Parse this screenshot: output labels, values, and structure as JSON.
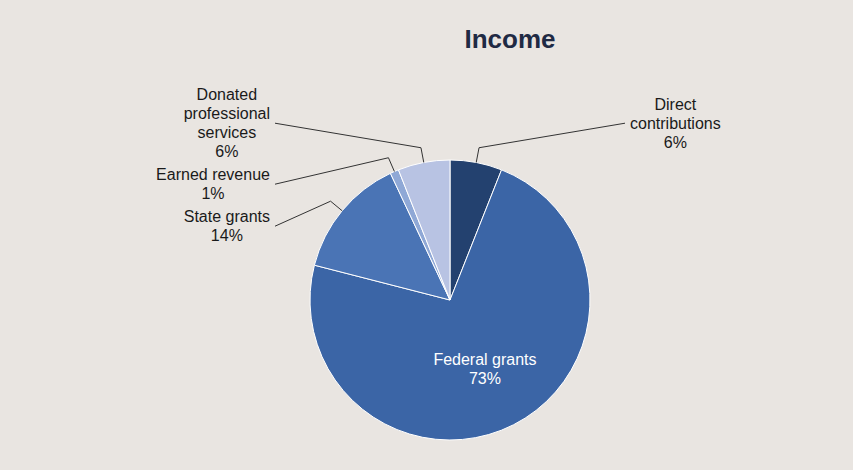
{
  "chart_data": {
    "type": "pie",
    "title": "Income",
    "categories": [
      "Direct contributions",
      "Federal grants",
      "State grants",
      "Earned revenue",
      "Donated professional services"
    ],
    "values": [
      6,
      73,
      14,
      1,
      6
    ],
    "value_labels": [
      "6%",
      "73%",
      "14%",
      "1%",
      "6%"
    ],
    "colors": [
      "#23416f",
      "#3b65a6",
      "#4a74b5",
      "#8fa8d6",
      "#b8c3e3"
    ],
    "data_labels": true
  }
}
